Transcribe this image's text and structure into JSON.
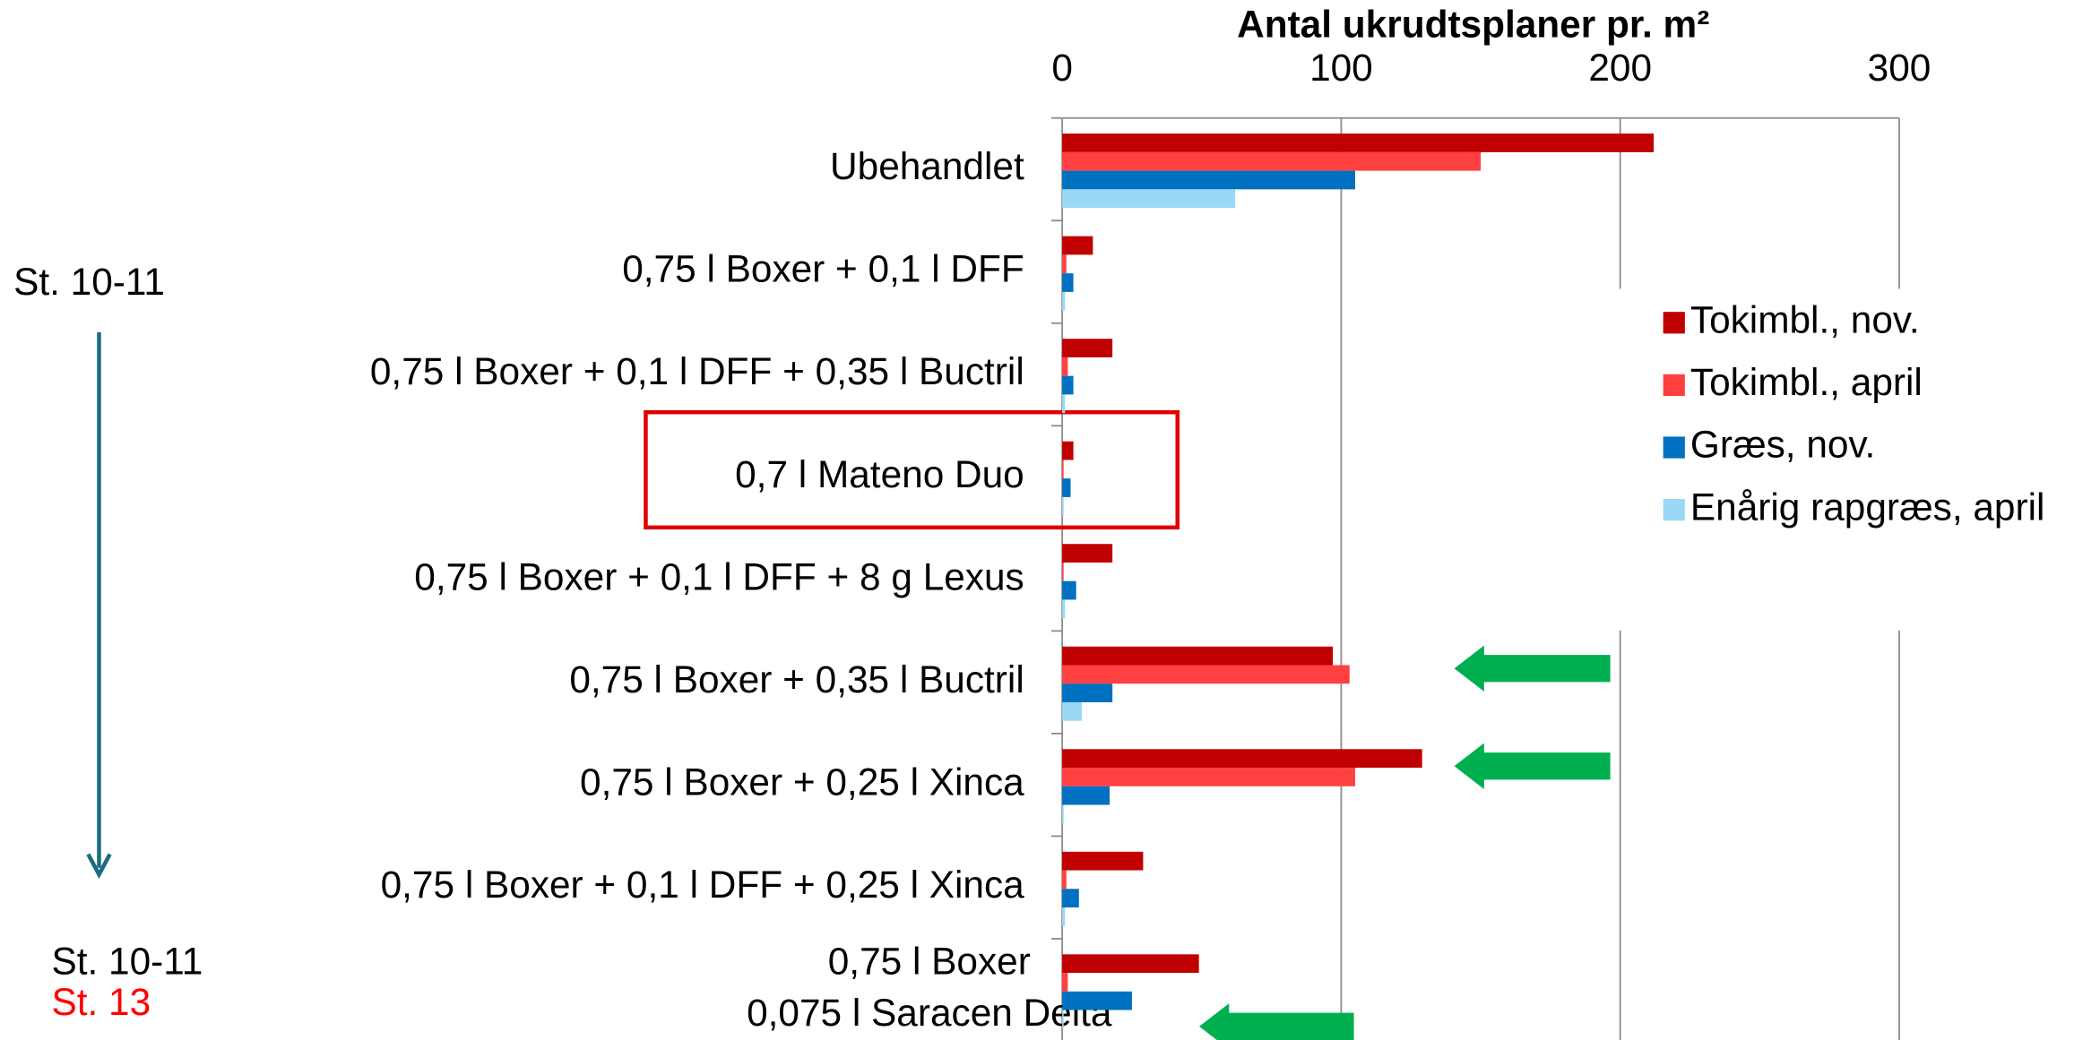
{
  "chart_data": {
    "type": "bar",
    "orientation": "horizontal",
    "title": "Antal ukrudtsplaner pr. m²",
    "categories": [
      "Ubehandlet",
      "0,75 l Boxer + 0,1 l DFF",
      "0,75 l Boxer + 0,1 l DFF + 0,35 l Buctril",
      "0,7 l Mateno Duo",
      "0,75 l Boxer + 0,1 l DFF + 8 g Lexus",
      "0,75 l Boxer + 0,35 l Buctril",
      "0,75 l Boxer + 0,25 l Xinca",
      "0,75 l Boxer + 0,1 l DFF + 0,25 l Xinca",
      [
        "0,75 l Boxer",
        "0,075 l Saracen Delta"
      ]
    ],
    "series": [
      {
        "name": "Tokimbl., nov.",
        "color": "#c00000",
        "values": [
          212,
          11,
          18,
          4,
          18,
          97,
          129,
          29,
          49
        ]
      },
      {
        "name": "Tokimbl., april",
        "color": "#ff4040",
        "values": [
          150,
          1.5,
          2,
          0.5,
          0.5,
          103,
          105,
          1.5,
          2
        ]
      },
      {
        "name": "Græs, nov.",
        "color": "#0070c0",
        "values": [
          105,
          4,
          4,
          3,
          5,
          18,
          17,
          6,
          25
        ]
      },
      {
        "name": "Enårig rapgræs, april",
        "color": "#99d9f5",
        "values": [
          62,
          1,
          1,
          0.5,
          1,
          7,
          0.5,
          1,
          0.5
        ]
      }
    ],
    "xlim": [
      0,
      300
    ],
    "xticks": [
      0,
      100,
      200,
      300
    ],
    "grid": true,
    "legend": "right",
    "annotations": [
      "St. 10-11",
      "St. 10-11",
      "St. 13"
    ]
  }
}
